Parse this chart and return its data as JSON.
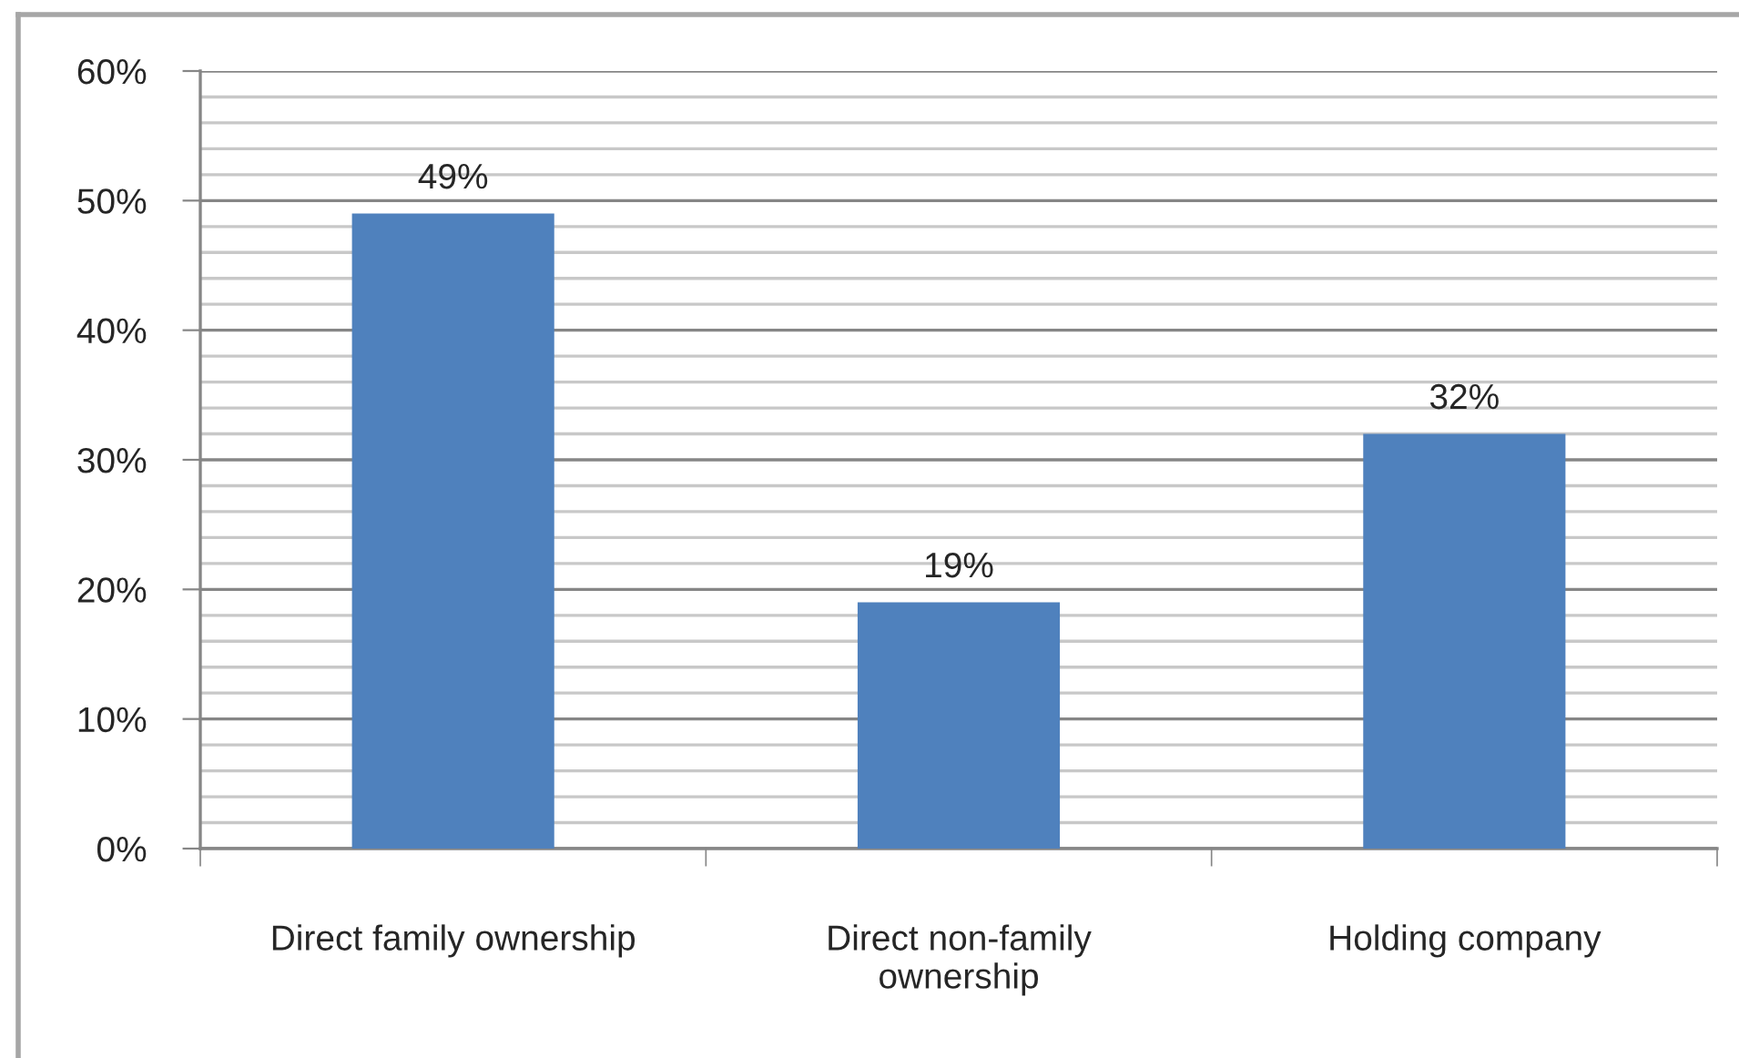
{
  "chart_data": {
    "type": "bar",
    "categories": [
      "Direct family ownership",
      "Direct non-family\nownership",
      "Holding company"
    ],
    "values": [
      49,
      19,
      32
    ],
    "color": "#4f81bd",
    "value_labels": [
      "49%",
      "19%",
      "32%"
    ],
    "ylim": [
      0,
      60
    ],
    "yticks": [
      {
        "value": 0,
        "label": "0%"
      },
      {
        "value": 2,
        "label": null
      },
      {
        "value": 4,
        "label": null
      },
      {
        "value": 6,
        "label": null
      },
      {
        "value": 8,
        "label": null
      },
      {
        "value": 10,
        "label": "10%"
      },
      {
        "value": 12,
        "label": null
      },
      {
        "value": 14,
        "label": null
      },
      {
        "value": 16,
        "label": null
      },
      {
        "value": 18,
        "label": null
      },
      {
        "value": 20,
        "label": "20%"
      },
      {
        "value": 22,
        "label": null
      },
      {
        "value": 24,
        "label": null
      },
      {
        "value": 26,
        "label": null
      },
      {
        "value": 28,
        "label": null
      },
      {
        "value": 30,
        "label": "30%"
      },
      {
        "value": 32,
        "label": null
      },
      {
        "value": 34,
        "label": null
      },
      {
        "value": 36,
        "label": null
      },
      {
        "value": 38,
        "label": null
      },
      {
        "value": 40,
        "label": "40%"
      },
      {
        "value": 42,
        "label": null
      },
      {
        "value": 44,
        "label": null
      },
      {
        "value": 46,
        "label": null
      },
      {
        "value": 48,
        "label": null
      },
      {
        "value": 50,
        "label": "50%"
      },
      {
        "value": 52,
        "label": null
      },
      {
        "value": 54,
        "label": null
      },
      {
        "value": 56,
        "label": null
      },
      {
        "value": 58,
        "label": null
      },
      {
        "value": 60,
        "label": "60%"
      }
    ],
    "grid": "y"
  }
}
